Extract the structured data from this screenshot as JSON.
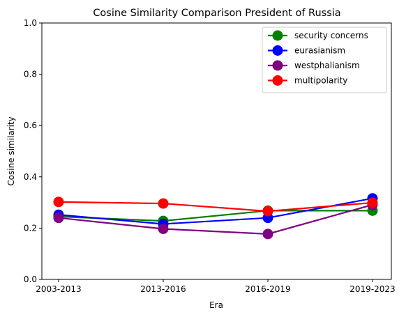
{
  "chart_data": {
    "type": "line",
    "title": "Cosine Similarity Comparison President of Russia",
    "xlabel": "Era",
    "ylabel": "Cosine similarity",
    "categories": [
      "2003-2013",
      "2013-2016",
      "2016-2019",
      "2019-2023"
    ],
    "ylim": [
      0,
      1.0
    ],
    "yticks": [
      "0.0",
      "0.2",
      "0.4",
      "0.6",
      "0.8",
      "1.0"
    ],
    "grid": false,
    "legend_position": "top-right",
    "series": [
      {
        "name": "security concerns",
        "color": "#008000",
        "values": [
          0.245,
          0.228,
          0.268,
          0.268
        ]
      },
      {
        "name": "eurasianism",
        "color": "#0000ff",
        "values": [
          0.252,
          0.216,
          0.24,
          0.316
        ]
      },
      {
        "name": "westphalianism",
        "color": "#800080",
        "values": [
          0.24,
          0.197,
          0.177,
          0.291
        ]
      },
      {
        "name": "multipolarity",
        "color": "#ff0000",
        "values": [
          0.302,
          0.296,
          0.266,
          0.299
        ]
      }
    ]
  }
}
